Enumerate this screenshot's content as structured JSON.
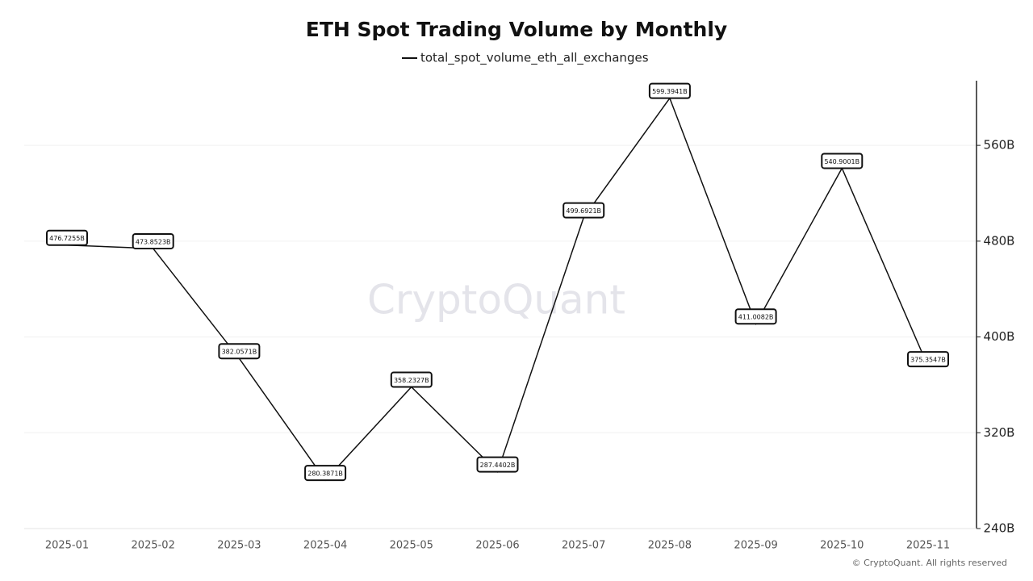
{
  "chart_data": {
    "type": "line",
    "title": "ETH Spot Trading Volume by Monthly",
    "watermark": "CryptoQuant",
    "footer": "© CryptoQuant. All rights reserved",
    "categories": [
      "2025-01",
      "2025-02",
      "2025-03",
      "2025-04",
      "2025-05",
      "2025-06",
      "2025-07",
      "2025-08",
      "2025-09",
      "2025-10",
      "2025-11"
    ],
    "series": [
      {
        "name": "total_spot_volume_eth_all_exchanges",
        "color": "#111111",
        "values": [
          476.7255,
          473.8523,
          382.0571,
          280.3871,
          358.2327,
          287.4402,
          499.6921,
          599.3941,
          411.0082,
          540.9001,
          375.3547
        ],
        "value_labels": [
          "476.7255B",
          "473.8523B",
          "382.0571B",
          "280.3871B",
          "358.2327B",
          "287.4402B",
          "499.6921B",
          "599.3941B",
          "411.0082B",
          "540.9001B",
          "375.3547B"
        ]
      }
    ],
    "ylim": [
      240,
      614
    ],
    "yticks": [
      {
        "value": 240,
        "label": "240B"
      },
      {
        "value": 320,
        "label": "320B"
      },
      {
        "value": 400,
        "label": "400B"
      },
      {
        "value": 480,
        "label": "480B"
      },
      {
        "value": 560,
        "label": "560B"
      }
    ],
    "grid": true
  }
}
